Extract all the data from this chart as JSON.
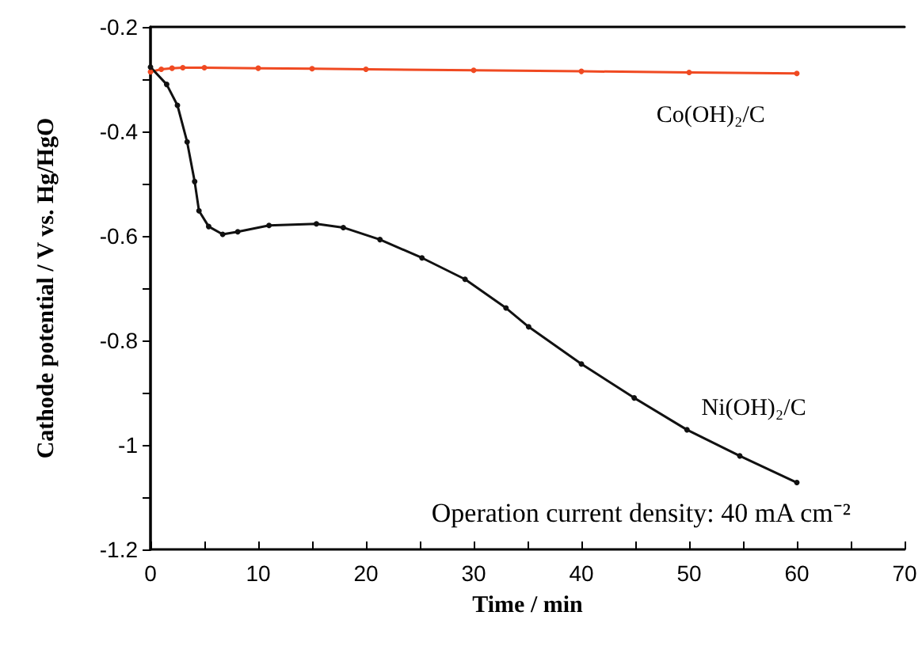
{
  "chart_data": {
    "type": "line",
    "xlabel": "Time / min",
    "ylabel": "Cathode potential / V vs. Hg/HgO",
    "xlim": [
      0,
      70
    ],
    "xticks": [
      0,
      10,
      20,
      30,
      40,
      50,
      60,
      70
    ],
    "ylim": [
      -1.2,
      -0.2
    ],
    "yticks": [
      -1.2,
      -1.0,
      -0.8,
      -0.6,
      -0.4,
      -0.2
    ],
    "grid": false,
    "legend": false,
    "marker": "circle",
    "line_style": "solid",
    "annotations": [
      "Operation current density: 40 mA cm⁻²"
    ],
    "series": [
      {
        "name": "Co(OH)₂/C",
        "color": "#f04a22",
        "x": [
          0,
          1,
          2,
          3,
          5,
          10,
          15,
          20,
          30,
          40,
          50,
          60
        ],
        "values": [
          -0.286,
          -0.281,
          -0.279,
          -0.278,
          -0.278,
          -0.279,
          -0.28,
          -0.281,
          -0.283,
          -0.285,
          -0.287,
          -0.289
        ]
      },
      {
        "name": "Ni(OH)₂/C",
        "color": "#111111",
        "x": [
          0,
          1.5,
          2.5,
          3.4,
          4.1,
          4.5,
          5.4,
          6.7,
          8.1,
          11,
          15.4,
          17.9,
          21.3,
          25.2,
          29.2,
          33,
          35.1,
          40,
          44.9,
          49.8,
          54.7,
          60
        ],
        "values": [
          -0.277,
          -0.31,
          -0.35,
          -0.42,
          -0.496,
          -0.552,
          -0.582,
          -0.597,
          -0.592,
          -0.58,
          -0.577,
          -0.584,
          -0.607,
          -0.642,
          -0.683,
          -0.738,
          -0.774,
          -0.845,
          -0.91,
          -0.971,
          -1.021,
          -1.072
        ]
      }
    ]
  }
}
